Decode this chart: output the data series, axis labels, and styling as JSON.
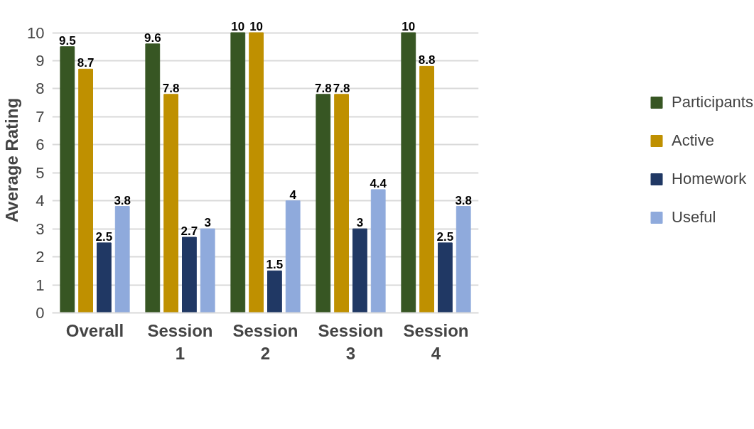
{
  "chart_data": {
    "type": "bar",
    "ylabel": "Average Rating",
    "categories": [
      "Overall",
      "Session 1",
      "Session 2",
      "Session 3",
      "Session 4"
    ],
    "series": [
      {
        "name": "Participants",
        "color": "#375623",
        "values": [
          9.5,
          9.6,
          10,
          7.8,
          10
        ]
      },
      {
        "name": "Active",
        "color": "#bf9000",
        "values": [
          8.7,
          7.8,
          10,
          7.8,
          8.8
        ]
      },
      {
        "name": "Homework",
        "color": "#203864",
        "values": [
          2.5,
          2.7,
          1.5,
          3,
          2.5
        ]
      },
      {
        "name": "Useful",
        "color": "#8faadc",
        "values": [
          3.8,
          3,
          4,
          4.4,
          3.8
        ]
      }
    ],
    "ylim": [
      0,
      10
    ],
    "yticks": [
      0,
      1,
      2,
      3,
      4,
      5,
      6,
      7,
      8,
      9,
      10
    ],
    "grid": "y",
    "data_labels": true,
    "legend": "right"
  }
}
